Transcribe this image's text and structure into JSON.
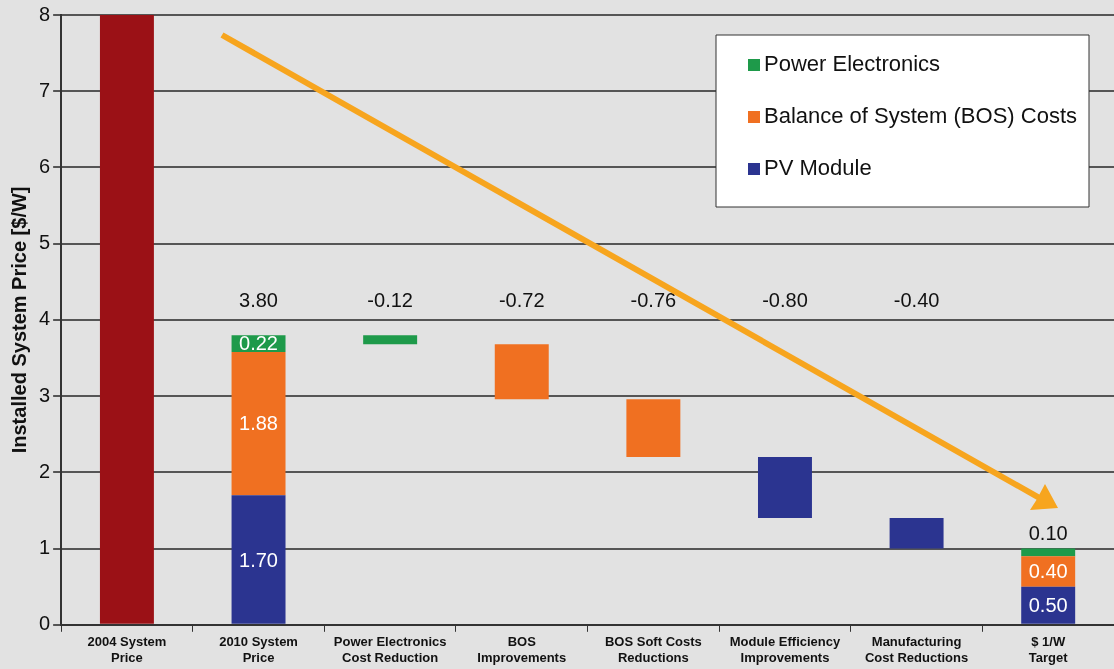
{
  "chart_data": {
    "type": "bar",
    "ylabel": "Installed System Price [$/W]",
    "categories": [
      "2004 System Price",
      "2010 System Price",
      "Power Electronics Cost Reduction",
      "BOS Improvements",
      "BOS Soft Costs Reductions",
      "Module Efficiency Improvements",
      "Manufacturing Cost Reductions",
      "$ 1/W Target"
    ],
    "series": [
      {
        "color": "#9b1116",
        "values": [
          8,
          null,
          null,
          null,
          null,
          null,
          null,
          null
        ]
      },
      {
        "name": "PV Module",
        "color": "#2b3490",
        "values": [
          null,
          1.7,
          null,
          null,
          null,
          0.8,
          0.4,
          0.5
        ],
        "base": [
          null,
          0,
          null,
          null,
          null,
          1.4,
          1.0,
          0
        ],
        "value_labels": [
          null,
          "1.70",
          null,
          null,
          null,
          null,
          null,
          "0.50"
        ]
      },
      {
        "name": "Balance of System (BOS) Costs",
        "color": "#f07021",
        "values": [
          null,
          1.88,
          null,
          0.72,
          0.76,
          null,
          null,
          0.4
        ],
        "base": [
          null,
          1.7,
          null,
          2.96,
          2.2,
          null,
          null,
          0.5
        ],
        "value_labels": [
          null,
          "1.88",
          null,
          null,
          null,
          null,
          null,
          "0.40"
        ]
      },
      {
        "name": "Power Electronics",
        "color": "#1e9a4a",
        "values": [
          null,
          0.22,
          0.12,
          null,
          null,
          null,
          null,
          0.1
        ],
        "base": [
          null,
          3.58,
          3.68,
          null,
          null,
          null,
          null,
          0.9
        ],
        "value_labels": [
          null,
          "0.22",
          null,
          null,
          null,
          null,
          null,
          "0.10"
        ]
      }
    ],
    "totals": [
      null,
      "3.80",
      null,
      null,
      null,
      null,
      null,
      null
    ],
    "annotations": [
      "-0.12",
      "-0.72",
      "-0.76",
      "-0.80",
      "-0.40"
    ],
    "ylim": [
      0,
      8
    ],
    "yticks": [
      0,
      1,
      2,
      3,
      4,
      5,
      6,
      7,
      8
    ],
    "grid": "y",
    "legend": "top right"
  }
}
